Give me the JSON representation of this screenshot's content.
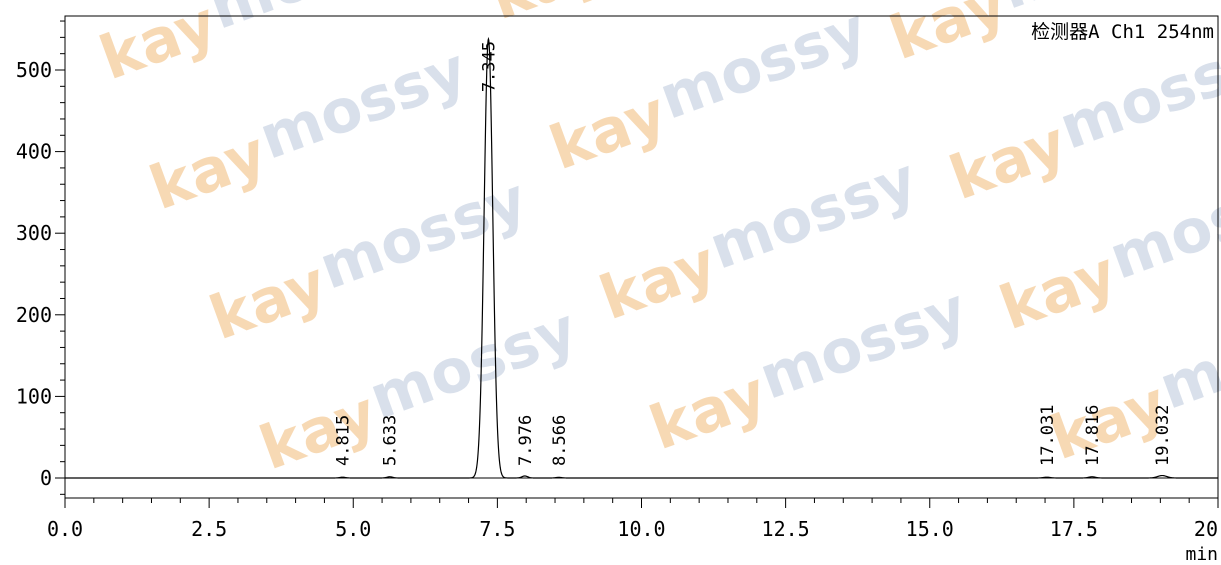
{
  "chart_data": {
    "type": "line",
    "title": "",
    "detector_label": "检测器A Ch1 254nm",
    "xlabel": "min",
    "ylabel": "",
    "xlim": [
      0,
      20
    ],
    "ylim": [
      -30,
      565
    ],
    "x_ticks": [
      0,
      2.5,
      5,
      7.5,
      10,
      12.5,
      15,
      17.5,
      20
    ],
    "x_tick_labels": [
      "0.0",
      "2.5",
      "5.0",
      "7.5",
      "10.0",
      "12.5",
      "15.0",
      "17.5",
      "20.0"
    ],
    "y_ticks": [
      0,
      100,
      200,
      300,
      400,
      500
    ],
    "y_tick_labels": [
      "0",
      "100",
      "200",
      "300",
      "400",
      "500"
    ],
    "grid": false,
    "baseline": 0,
    "peaks": [
      {
        "rt": 4.815,
        "label": "4.815",
        "height": 1.0,
        "width": 0.05
      },
      {
        "rt": 5.633,
        "label": "5.633",
        "height": 1.5,
        "width": 0.05
      },
      {
        "rt": 7.345,
        "label": "7.345",
        "height": 538,
        "width": 0.075
      },
      {
        "rt": 7.976,
        "label": "7.976",
        "height": 2.5,
        "width": 0.05
      },
      {
        "rt": 8.566,
        "label": "8.566",
        "height": 0.8,
        "width": 0.05
      },
      {
        "rt": 17.031,
        "label": "17.031",
        "height": 1.0,
        "width": 0.06
      },
      {
        "rt": 17.816,
        "label": "17.816",
        "height": 1.5,
        "width": 0.06
      },
      {
        "rt": 19.032,
        "label": "19.032",
        "height": 3.0,
        "width": 0.08
      }
    ]
  },
  "watermark": {
    "text_primary": "kay",
    "text_secondary": "mossy",
    "color_primary": "#f6d3a8",
    "color_secondary": "#d3dbe8"
  },
  "colors": {
    "trace": "#000000",
    "axis": "#000000"
  }
}
